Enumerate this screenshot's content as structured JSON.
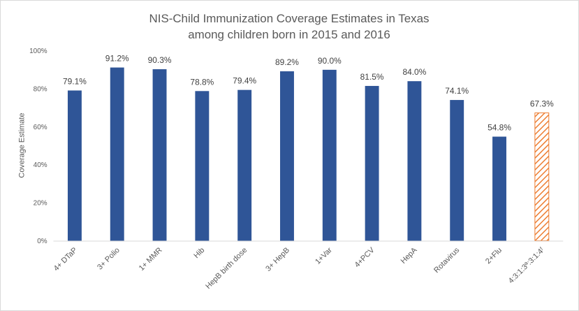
{
  "chart_data": {
    "type": "bar",
    "title": [
      "NIS-Child Immunization Coverage Estimates in Texas",
      "among children born in  2015 and 2016"
    ],
    "xlabel": "",
    "ylabel": "Coverage Estimate",
    "ylim": [
      0,
      100
    ],
    "yticks": [
      "0%",
      "20%",
      "40%",
      "60%",
      "80%",
      "100%"
    ],
    "ytick_values": [
      0,
      20,
      40,
      60,
      80,
      100
    ],
    "grid": false,
    "categories": [
      "4+ DTaP",
      "3+ Polio",
      "1+ MMR",
      "Hib",
      "HepB birth dose",
      "3+ HepB",
      "1+Var",
      "4+PCV",
      "HepA",
      "Rotavirus",
      "2+Flu",
      "4:3:1:3ª:3:1:4ᶠ"
    ],
    "values": [
      79.1,
      91.2,
      90.3,
      78.8,
      79.4,
      89.2,
      90.0,
      81.5,
      84.0,
      74.1,
      54.8,
      67.3
    ],
    "value_labels": [
      "79.1%",
      "91.2%",
      "90.3%",
      "78.8%",
      "79.4%",
      "89.2%",
      "90.0%",
      "81.5%",
      "84.0%",
      "74.1%",
      "54.8%",
      "67.3%"
    ],
    "styles": [
      "solid",
      "solid",
      "solid",
      "solid",
      "solid",
      "solid",
      "solid",
      "solid",
      "solid",
      "solid",
      "solid",
      "hatched"
    ],
    "colors": {
      "bar": "#2f5597",
      "hatch": "#ed7d31",
      "axis": "#d9d9d9"
    }
  }
}
